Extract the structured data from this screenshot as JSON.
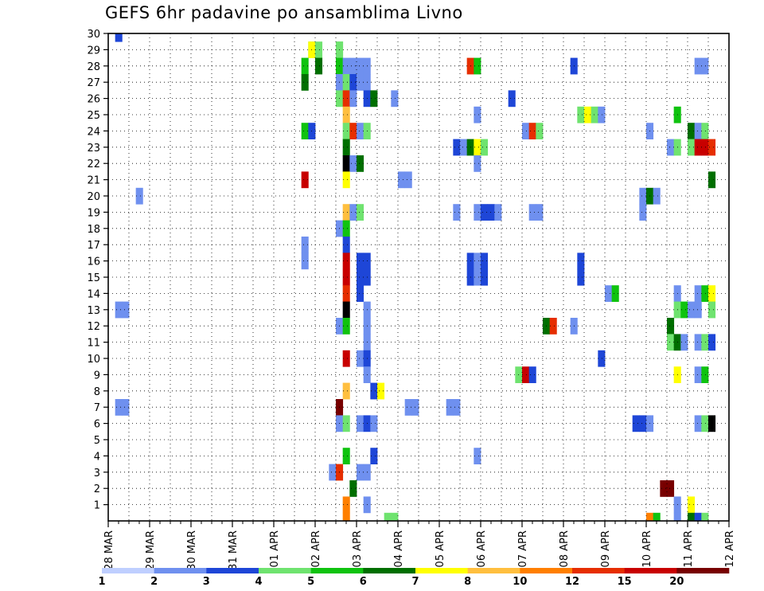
{
  "chart_data": {
    "type": "heatmap",
    "title": "GEFS 6hr padavine po ansamblima Livno",
    "x_tick_labels": [
      "28 MAR",
      "29 MAR",
      "30 MAR",
      "31 MAR",
      "01 APR",
      "02 APR",
      "03 APR",
      "04 APR",
      "05 APR",
      "06 APR",
      "07 APR",
      "08 APR",
      "09 APR",
      "10 APR",
      "11 APR",
      "12 APR"
    ],
    "y_tick_labels": [
      "1",
      "2",
      "3",
      "4",
      "5",
      "6",
      "7",
      "8",
      "9",
      "10",
      "11",
      "12",
      "13",
      "14",
      "15",
      "16",
      "17",
      "18",
      "19",
      "20",
      "21",
      "22",
      "23",
      "24",
      "25",
      "26",
      "27",
      "28",
      "29",
      "30"
    ],
    "x_range": [
      "28 MAR 00Z",
      "12 APR 00Z"
    ],
    "y_range": [
      0,
      30
    ],
    "grid": true,
    "legend_labels": [
      "1",
      "2",
      "3",
      "4",
      "5",
      "6",
      "7",
      "8",
      "10",
      "12",
      "15",
      "20"
    ],
    "colors": [
      "#bfcfff",
      "#6f90ef",
      "#1e46d7",
      "#6fe36f",
      "#0fc30f",
      "#006f00",
      "#ffff00",
      "#ffbf3f",
      "#ff7f00",
      "#e62e00",
      "#c80000",
      "#780000"
    ],
    "cells": [
      [
        1,
        30,
        2
      ],
      [
        29,
        29,
        3
      ],
      [
        33,
        29,
        3
      ],
      [
        29,
        29,
        6
      ],
      [
        30,
        29,
        3
      ],
      [
        28,
        28,
        4
      ],
      [
        33,
        29,
        3
      ],
      [
        30,
        28,
        5
      ],
      [
        33,
        28,
        4
      ],
      [
        34,
        28,
        1
      ],
      [
        35,
        28,
        1
      ],
      [
        36,
        28,
        1
      ],
      [
        37,
        28,
        1
      ],
      [
        52,
        28,
        9
      ],
      [
        53,
        28,
        4
      ],
      [
        67,
        28,
        2
      ],
      [
        85,
        28,
        1
      ],
      [
        86,
        28,
        1
      ],
      [
        28,
        27,
        5
      ],
      [
        33,
        27,
        1
      ],
      [
        34,
        27,
        3
      ],
      [
        35,
        27,
        2
      ],
      [
        36,
        27,
        1
      ],
      [
        37,
        27,
        1
      ],
      [
        33,
        26,
        3
      ],
      [
        34,
        26,
        9
      ],
      [
        35,
        26,
        1
      ],
      [
        37,
        26,
        2
      ],
      [
        38,
        26,
        5
      ],
      [
        41,
        26,
        1
      ],
      [
        58,
        26,
        2
      ],
      [
        34,
        25,
        7
      ],
      [
        53,
        25,
        1
      ],
      [
        68,
        25,
        3
      ],
      [
        69,
        25,
        6
      ],
      [
        70,
        25,
        3
      ],
      [
        71,
        25,
        1
      ],
      [
        82,
        25,
        4
      ],
      [
        28,
        24,
        4
      ],
      [
        29,
        24,
        2
      ],
      [
        34,
        24,
        3
      ],
      [
        35,
        24,
        9
      ],
      [
        36,
        24,
        1
      ],
      [
        37,
        24,
        3
      ],
      [
        60,
        24,
        1
      ],
      [
        61,
        24,
        9
      ],
      [
        62,
        24,
        3
      ],
      [
        78,
        24,
        1
      ],
      [
        84,
        24,
        5
      ],
      [
        85,
        24,
        1
      ],
      [
        86,
        24,
        3
      ],
      [
        34,
        23,
        5
      ],
      [
        50,
        23,
        2
      ],
      [
        51,
        23,
        1
      ],
      [
        52,
        23,
        5
      ],
      [
        53,
        23,
        6
      ],
      [
        54,
        23,
        3
      ],
      [
        81,
        23,
        1
      ],
      [
        82,
        23,
        3
      ],
      [
        84,
        23,
        3
      ],
      [
        85,
        23,
        10
      ],
      [
        86,
        23,
        10
      ],
      [
        87,
        23,
        9
      ],
      [
        34,
        22,
        12
      ],
      [
        35,
        22,
        1
      ],
      [
        36,
        22,
        5
      ],
      [
        53,
        22,
        1
      ],
      [
        28,
        21,
        10
      ],
      [
        34,
        21,
        6
      ],
      [
        42,
        21,
        1
      ],
      [
        43,
        21,
        1
      ],
      [
        87,
        21,
        5
      ],
      [
        4,
        20,
        1
      ],
      [
        77,
        20,
        1
      ],
      [
        78,
        20,
        5
      ],
      [
        79,
        20,
        1
      ],
      [
        34,
        19,
        7
      ],
      [
        35,
        19,
        1
      ],
      [
        36,
        19,
        3
      ],
      [
        50,
        19,
        1
      ],
      [
        53,
        19,
        1
      ],
      [
        54,
        19,
        2
      ],
      [
        55,
        19,
        2
      ],
      [
        56,
        19,
        1
      ],
      [
        61,
        19,
        1
      ],
      [
        62,
        19,
        1
      ],
      [
        77,
        19,
        1
      ],
      [
        33,
        18,
        1
      ],
      [
        34,
        18,
        4
      ],
      [
        34,
        17,
        2
      ],
      [
        28,
        17,
        1
      ],
      [
        28,
        16,
        1
      ],
      [
        34,
        16,
        10
      ],
      [
        36,
        16,
        2
      ],
      [
        37,
        16,
        2
      ],
      [
        52,
        16,
        2
      ],
      [
        53,
        16,
        1
      ],
      [
        54,
        16,
        2
      ],
      [
        68,
        16,
        2
      ],
      [
        34,
        15,
        10
      ],
      [
        36,
        15,
        2
      ],
      [
        37,
        15,
        2
      ],
      [
        52,
        15,
        2
      ],
      [
        53,
        15,
        1
      ],
      [
        54,
        15,
        2
      ],
      [
        68,
        15,
        2
      ],
      [
        34,
        14,
        9
      ],
      [
        36,
        14,
        2
      ],
      [
        72,
        14,
        1
      ],
      [
        73,
        14,
        4
      ],
      [
        82,
        14,
        1
      ],
      [
        85,
        14,
        1
      ],
      [
        86,
        14,
        4
      ],
      [
        87,
        14,
        6
      ],
      [
        1,
        13,
        1
      ],
      [
        2,
        13,
        1
      ],
      [
        34,
        13,
        12
      ],
      [
        37,
        13,
        1
      ],
      [
        82,
        13,
        3
      ],
      [
        83,
        13,
        4
      ],
      [
        84,
        13,
        1
      ],
      [
        85,
        13,
        1
      ],
      [
        87,
        13,
        3
      ],
      [
        33,
        12,
        1
      ],
      [
        34,
        12,
        4
      ],
      [
        37,
        12,
        1
      ],
      [
        63,
        12,
        5
      ],
      [
        64,
        12,
        9
      ],
      [
        67,
        12,
        1
      ],
      [
        81,
        12,
        5
      ],
      [
        37,
        11,
        1
      ],
      [
        81,
        11,
        3
      ],
      [
        82,
        11,
        5
      ],
      [
        83,
        11,
        1
      ],
      [
        85,
        11,
        1
      ],
      [
        86,
        11,
        3
      ],
      [
        87,
        11,
        2
      ],
      [
        34,
        10,
        10
      ],
      [
        36,
        10,
        1
      ],
      [
        37,
        10,
        2
      ],
      [
        71,
        10,
        2
      ],
      [
        37,
        9,
        1
      ],
      [
        59,
        9,
        3
      ],
      [
        60,
        9,
        10
      ],
      [
        61,
        9,
        2
      ],
      [
        82,
        9,
        6
      ],
      [
        85,
        9,
        1
      ],
      [
        86,
        9,
        4
      ],
      [
        34,
        8,
        7
      ],
      [
        38,
        8,
        2
      ],
      [
        39,
        8,
        6
      ],
      [
        1,
        7,
        1
      ],
      [
        2,
        7,
        1
      ],
      [
        33,
        7,
        11
      ],
      [
        43,
        7,
        1
      ],
      [
        44,
        7,
        1
      ],
      [
        49,
        7,
        1
      ],
      [
        50,
        7,
        1
      ],
      [
        33,
        6,
        1
      ],
      [
        34,
        6,
        3
      ],
      [
        36,
        6,
        1
      ],
      [
        37,
        6,
        2
      ],
      [
        38,
        6,
        1
      ],
      [
        76,
        6,
        2
      ],
      [
        77,
        6,
        2
      ],
      [
        78,
        6,
        1
      ],
      [
        85,
        6,
        1
      ],
      [
        86,
        6,
        3
      ],
      [
        87,
        6,
        12
      ],
      [
        34,
        4,
        4
      ],
      [
        38,
        4,
        2
      ],
      [
        53,
        4,
        1
      ],
      [
        32,
        3,
        1
      ],
      [
        33,
        3,
        9
      ],
      [
        36,
        3,
        1
      ],
      [
        37,
        3,
        1
      ],
      [
        35,
        2,
        5
      ],
      [
        80,
        2,
        11
      ],
      [
        81,
        2,
        11
      ],
      [
        34,
        1,
        8
      ],
      [
        37,
        1,
        1
      ],
      [
        82,
        1,
        1
      ],
      [
        84,
        1,
        6
      ],
      [
        34,
        0,
        8
      ],
      [
        40,
        0,
        3
      ],
      [
        41,
        0,
        3
      ],
      [
        78,
        0,
        8
      ],
      [
        79,
        0,
        4
      ],
      [
        82,
        0,
        1
      ],
      [
        84,
        0,
        5
      ],
      [
        85,
        0,
        2
      ],
      [
        86,
        0,
        3
      ]
    ]
  }
}
